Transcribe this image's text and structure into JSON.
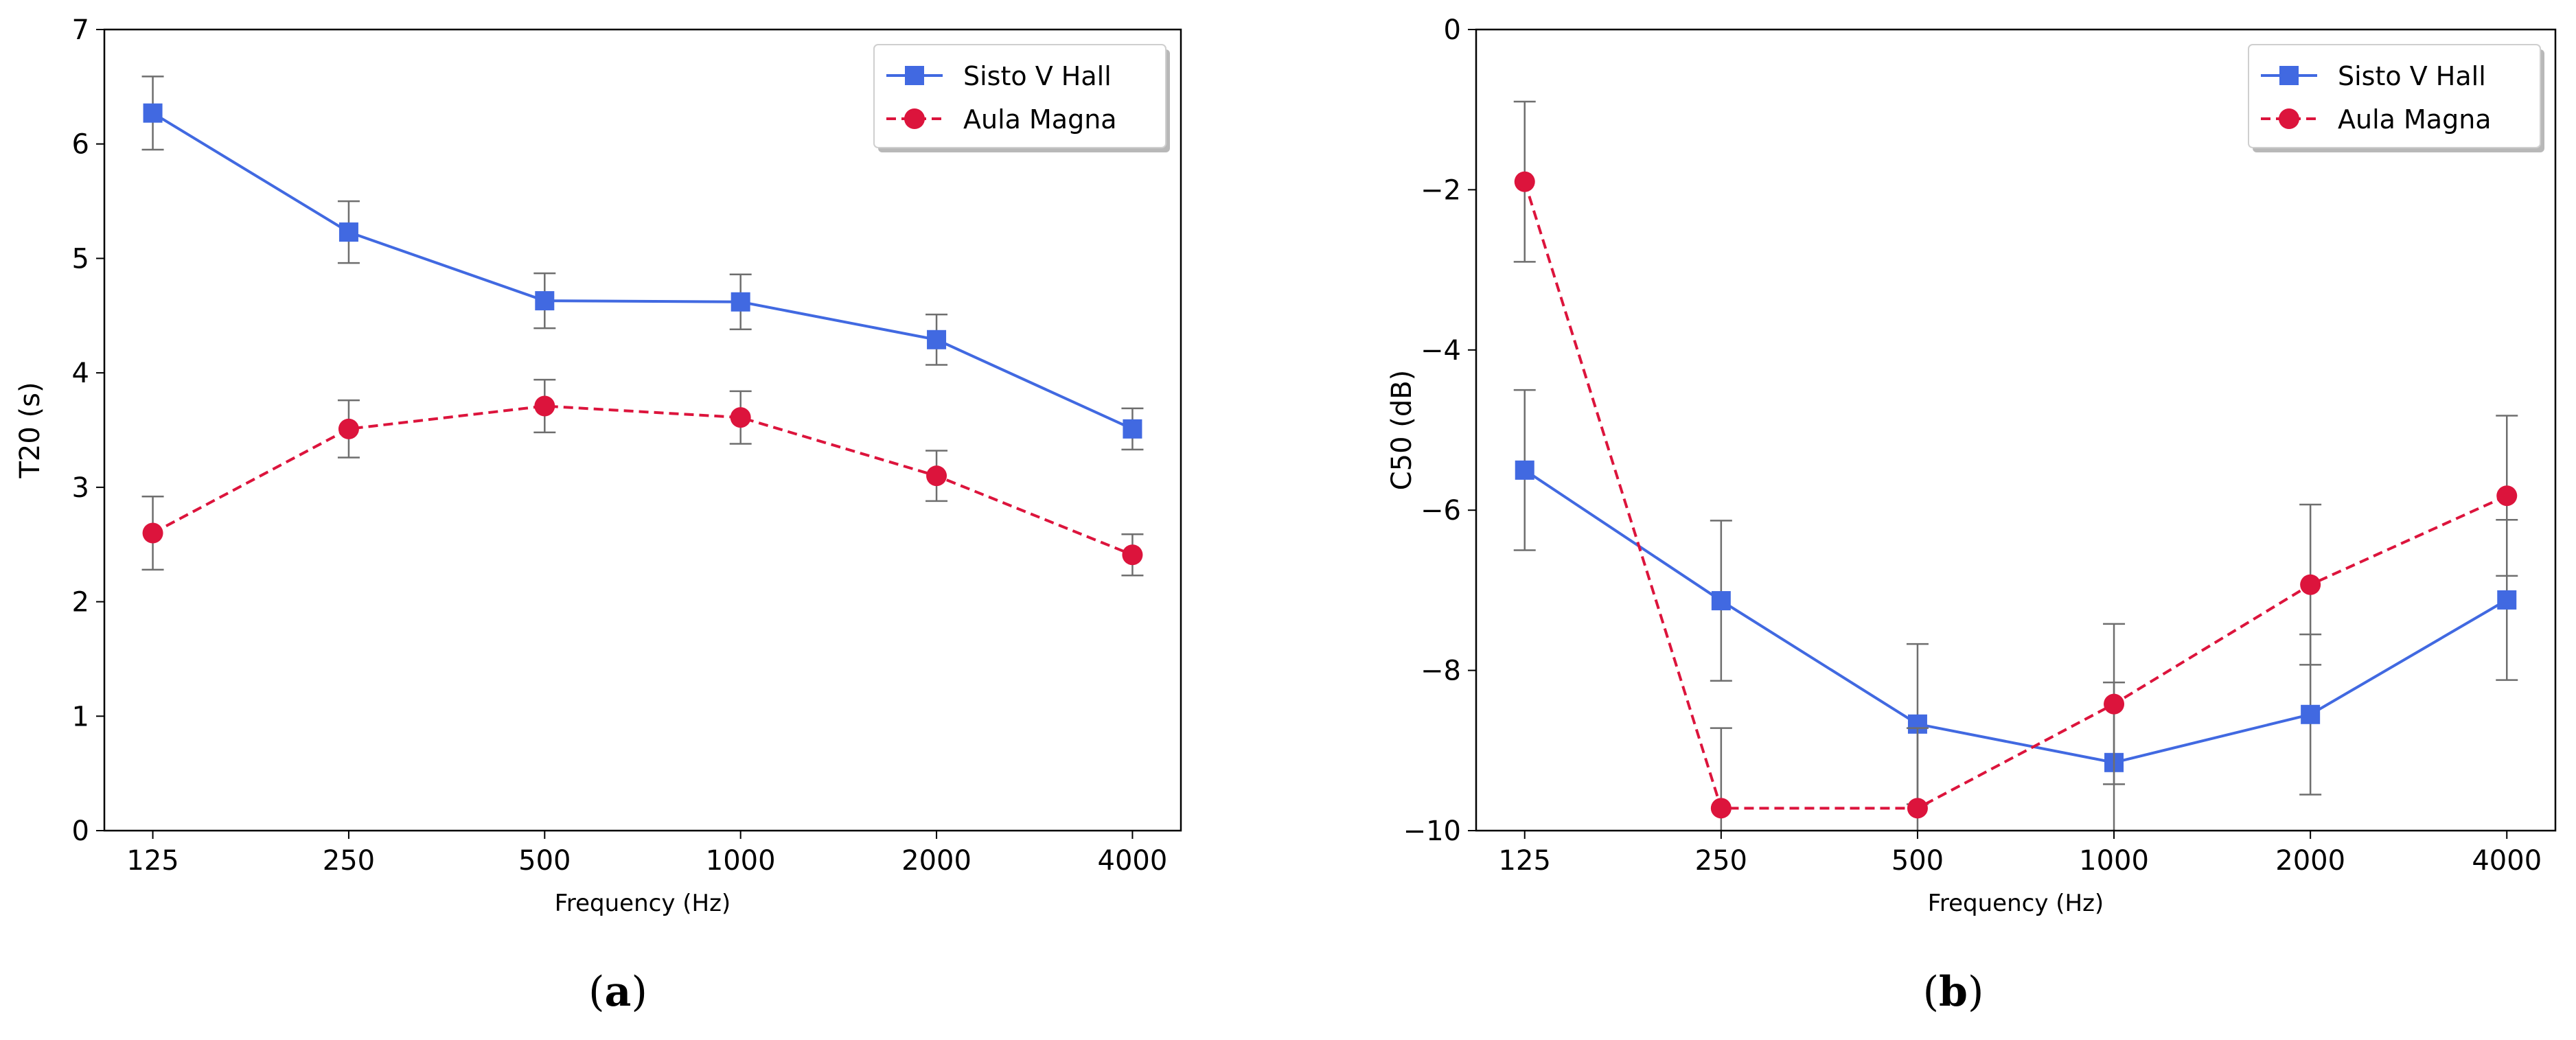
{
  "chart_data": [
    {
      "type": "line",
      "caption_letter": "a",
      "xlabel": "Frequency (Hz)",
      "ylabel": "T20 (s)",
      "categories": [
        "125",
        "250",
        "500",
        "1000",
        "2000",
        "4000"
      ],
      "ylim": [
        0,
        7
      ],
      "yticks": [
        "0",
        "1",
        "2",
        "3",
        "4",
        "5",
        "6",
        "7"
      ],
      "legend_position": "top-right",
      "series": [
        {
          "name": "Sisto V Hall",
          "color": "#4169E1",
          "marker": "square",
          "linestyle": "solid",
          "values": [
            6.27,
            5.23,
            4.63,
            4.62,
            4.29,
            3.51
          ],
          "errors": [
            0.32,
            0.27,
            0.24,
            0.24,
            0.22,
            0.18
          ]
        },
        {
          "name": "Aula Magna",
          "color": "#DC143C",
          "marker": "circle",
          "linestyle": "dashed",
          "values": [
            2.6,
            3.51,
            3.71,
            3.61,
            3.1,
            2.41
          ],
          "errors": [
            0.32,
            0.25,
            0.23,
            0.23,
            0.22,
            0.18
          ]
        }
      ]
    },
    {
      "type": "line",
      "caption_letter": "b",
      "xlabel": "Frequency (Hz)",
      "ylabel": "C50 (dB)",
      "categories": [
        "125",
        "250",
        "500",
        "1000",
        "2000",
        "4000"
      ],
      "ylim": [
        -10,
        0
      ],
      "yticks": [
        "−10",
        "−8",
        "−6",
        "−4",
        "−2",
        "0"
      ],
      "legend_position": "top-right",
      "series": [
        {
          "name": "Sisto V Hall",
          "color": "#4169E1",
          "marker": "square",
          "linestyle": "solid",
          "values": [
            -5.5,
            -7.13,
            -8.67,
            -9.15,
            -8.55,
            -7.12
          ],
          "errors": [
            1.0,
            1.0,
            1.0,
            1.0,
            1.0,
            1.0
          ]
        },
        {
          "name": "Aula Magna",
          "color": "#DC143C",
          "marker": "circle",
          "linestyle": "dashed",
          "values": [
            -1.9,
            -9.72,
            -9.72,
            -8.42,
            -6.93,
            -5.82
          ],
          "errors": [
            1.0,
            1.0,
            1.0,
            1.0,
            1.0,
            1.0
          ]
        }
      ]
    }
  ]
}
